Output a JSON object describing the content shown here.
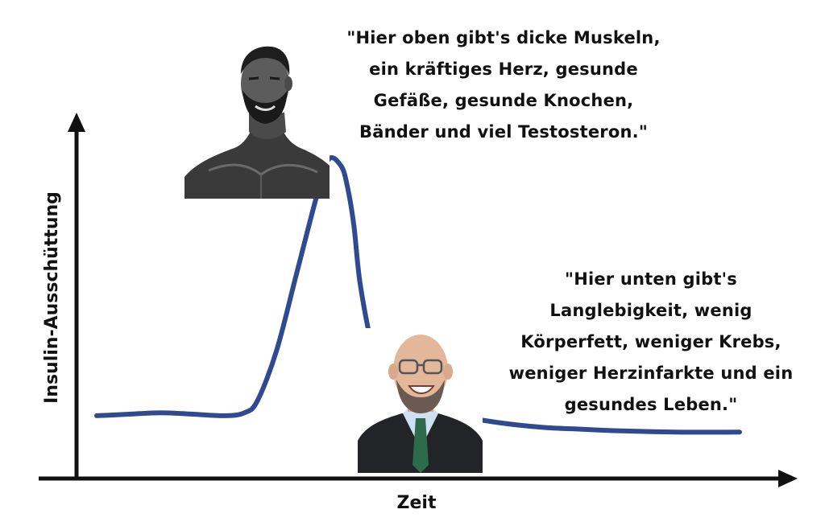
{
  "chart_data": {
    "type": "line",
    "xlabel": "Zeit",
    "ylabel": "Insulin-Ausschüttung",
    "title": "",
    "grid": false,
    "legend": "none",
    "x_ticks": false,
    "y_ticks": false,
    "xlim": [
      0,
      100
    ],
    "ylim": [
      0,
      100
    ],
    "series": [
      {
        "color": "#2f4a8f",
        "x": [
          0,
          5,
          10,
          15,
          20,
          23,
          25,
          28,
          31,
          34,
          36,
          38,
          39,
          40,
          41,
          43,
          45,
          47,
          50,
          55,
          60,
          65,
          70,
          75,
          80,
          90,
          100
        ],
        "y": [
          13,
          13.5,
          14,
          13.5,
          13,
          14,
          18,
          35,
          60,
          85,
          99,
          97,
          90,
          77,
          57,
          35,
          25,
          20,
          16.5,
          13.5,
          11.5,
          10,
          9,
          8.5,
          8,
          7.5,
          7.5
        ]
      }
    ]
  },
  "annotations": {
    "top_quote": [
      "\"Hier oben gibt's dicke Muskeln,",
      "ein kräftiges Herz, gesunde",
      "Gefäße, gesunde Knochen,",
      "Bänder und viel Testosteron.\""
    ],
    "bottom_quote": [
      "\"Hier unten gibt's",
      "Langlebigkeit, wenig",
      "Körperfett, weniger Krebs,",
      "weniger Herzinfarkte und ein",
      "gesundes Leben.\""
    ]
  },
  "images": {
    "top": "muscular-bearded-man-portrait",
    "bottom": "smiling-bald-man-glasses-suit"
  },
  "colors": {
    "curve": "#2f4a8f",
    "axes": "#111111",
    "text": "#111111"
  }
}
